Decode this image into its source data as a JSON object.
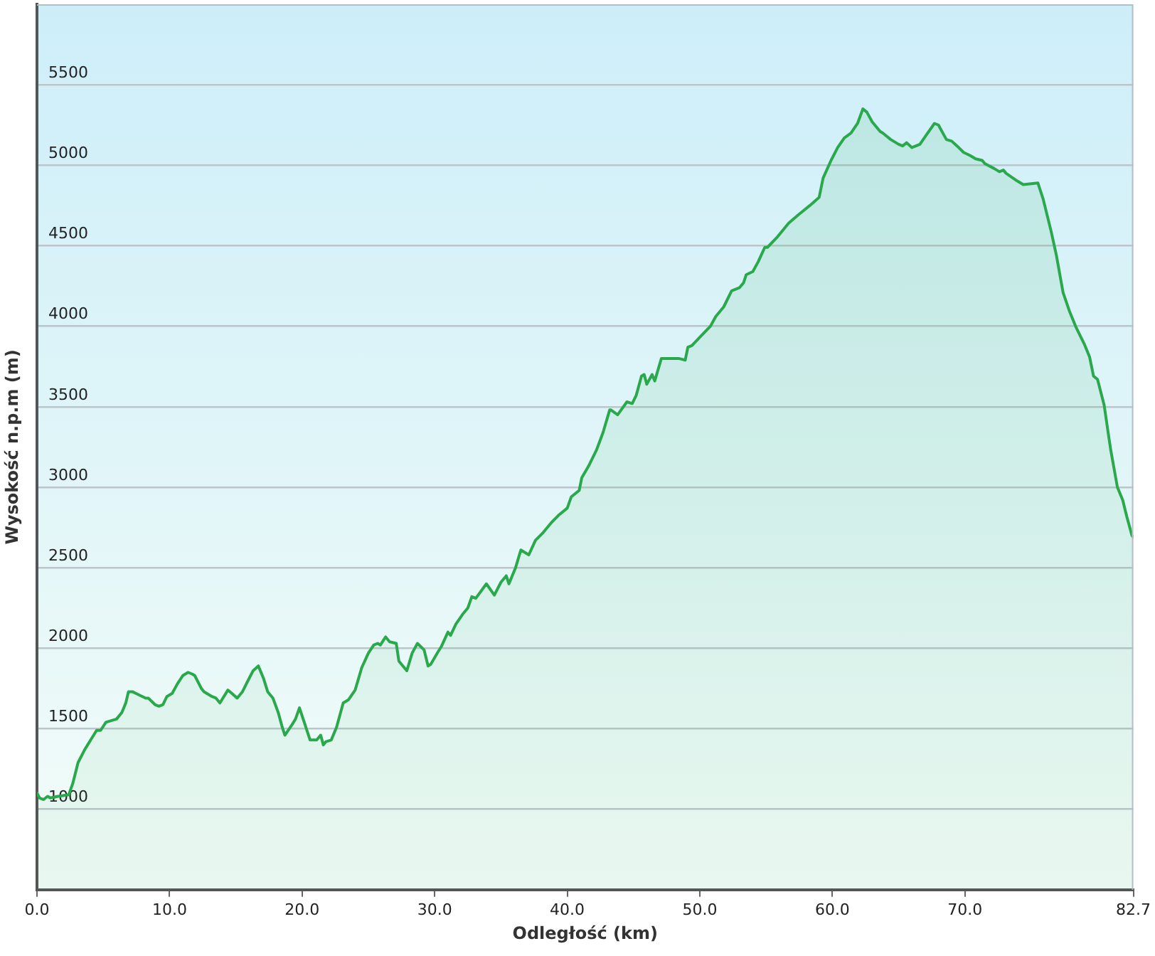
{
  "chart_data": {
    "type": "area",
    "xlabel": "Odległość (km)",
    "ylabel": "Wysokość n.p.m (m)",
    "x": [
      0,
      0.2,
      0.5,
      0.8,
      1.0,
      1.6,
      2.4,
      2.7,
      3.1,
      3.6,
      4.2,
      4.5,
      4.8,
      5.2,
      5.6,
      6.0,
      6.4,
      6.7,
      6.9,
      7.2,
      7.7,
      8.2,
      8.4,
      8.9,
      9.2,
      9.5,
      9.8,
      10.2,
      10.6,
      11.0,
      11.4,
      11.7,
      11.9,
      12.4,
      12.6,
      13.2,
      13.5,
      13.8,
      14.4,
      14.7,
      15.1,
      15.5,
      15.8,
      16.3,
      16.7,
      17.1,
      17.4,
      17.8,
      18.2,
      18.5,
      18.7,
      19.2,
      19.5,
      19.8,
      20.2,
      20.6,
      21.1,
      21.4,
      21.6,
      21.8,
      22.2,
      22.6,
      23.1,
      23.5,
      24.0,
      24.5,
      25.0,
      25.4,
      25.7,
      25.9,
      26.3,
      26.6,
      27.1,
      27.3,
      27.9,
      28.3,
      28.7,
      29.2,
      29.5,
      29.7,
      30.2,
      30.5,
      31.0,
      31.2,
      31.6,
      32.1,
      32.5,
      32.8,
      33.1,
      33.9,
      34.5,
      35.0,
      35.4,
      35.6,
      36.1,
      36.5,
      37.1,
      37.6,
      38.2,
      38.8,
      39.4,
      40.0,
      40.3,
      40.9,
      41.1,
      41.6,
      42.2,
      42.7,
      43.2,
      43.3,
      43.8,
      44.5,
      44.9,
      45.2,
      45.6,
      45.8,
      46.0,
      46.2,
      46.4,
      46.6,
      47.1,
      47.4,
      48.4,
      48.9,
      49.1,
      49.4,
      50.1,
      50.8,
      51.2,
      51.8,
      52.4,
      53.0,
      53.3,
      53.5,
      54.0,
      54.4,
      54.9,
      55.1,
      55.8,
      56.7,
      57.4,
      58.3,
      59.0,
      59.3,
      59.9,
      60.4,
      60.9,
      61.4,
      61.9,
      62.3,
      62.6,
      63.0,
      63.6,
      63.8,
      64.4,
      65.0,
      65.3,
      65.6,
      66.0,
      66.6,
      67.1,
      67.7,
      68.0,
      68.6,
      69.0,
      69.4,
      69.9,
      70.4,
      70.8,
      71.3,
      71.5,
      72.2,
      72.6,
      72.9,
      73.1,
      73.8,
      74.4,
      75.5,
      75.9,
      76.5,
      76.9,
      77.4,
      77.9,
      78.4,
      79.0,
      79.4,
      79.7,
      80.0,
      80.5,
      80.8,
      81.0,
      81.5,
      81.9,
      82.2,
      82.6,
      82.7
    ],
    "series": [
      {
        "color": "#2aa84c",
        "values": [
          1100,
          1070,
          1060,
          1080,
          1070,
          1080,
          1090,
          1160,
          1290,
          1370,
          1450,
          1490,
          1490,
          1540,
          1550,
          1560,
          1600,
          1660,
          1730,
          1730,
          1710,
          1690,
          1690,
          1650,
          1640,
          1650,
          1700,
          1720,
          1780,
          1830,
          1850,
          1840,
          1830,
          1750,
          1730,
          1700,
          1690,
          1660,
          1740,
          1720,
          1690,
          1730,
          1780,
          1860,
          1890,
          1810,
          1730,
          1690,
          1600,
          1510,
          1460,
          1520,
          1560,
          1630,
          1530,
          1430,
          1430,
          1460,
          1400,
          1420,
          1430,
          1510,
          1660,
          1680,
          1740,
          1880,
          1970,
          2020,
          2030,
          2020,
          2070,
          2040,
          2030,
          1920,
          1860,
          1970,
          2030,
          1990,
          1890,
          1900,
          1970,
          2010,
          2100,
          2080,
          2150,
          2210,
          2250,
          2320,
          2310,
          2400,
          2330,
          2410,
          2450,
          2400,
          2500,
          2610,
          2580,
          2670,
          2720,
          2780,
          2830,
          2870,
          2940,
          2980,
          3060,
          3130,
          3230,
          3340,
          3480,
          3480,
          3450,
          3530,
          3520,
          3570,
          3690,
          3700,
          3640,
          3670,
          3700,
          3660,
          3800,
          3800,
          3800,
          3790,
          3870,
          3880,
          3940,
          4000,
          4060,
          4120,
          4220,
          4240,
          4270,
          4320,
          4340,
          4400,
          4490,
          4490,
          4550,
          4640,
          4690,
          4750,
          4800,
          4920,
          5030,
          5110,
          5170,
          5200,
          5260,
          5350,
          5330,
          5270,
          5210,
          5200,
          5160,
          5130,
          5120,
          5140,
          5110,
          5130,
          5190,
          5260,
          5250,
          5160,
          5150,
          5120,
          5080,
          5060,
          5040,
          5030,
          5010,
          4980,
          4960,
          4970,
          4950,
          4910,
          4880,
          4890,
          4790,
          4590,
          4440,
          4210,
          4090,
          3990,
          3890,
          3810,
          3690,
          3670,
          3510,
          3340,
          3230,
          3000,
          2920,
          2820,
          2700,
          2690
        ]
      }
    ],
    "xlim": [
      0,
      82.7
    ],
    "ylim": [
      500,
      6000
    ],
    "xticks": [
      {
        "value": 0,
        "label": "0.0"
      },
      {
        "value": 10,
        "label": "10.0"
      },
      {
        "value": 20,
        "label": "20.0"
      },
      {
        "value": 30,
        "label": "30.0"
      },
      {
        "value": 40,
        "label": "40.0"
      },
      {
        "value": 50,
        "label": "50.0"
      },
      {
        "value": 60,
        "label": "60.0"
      },
      {
        "value": 70,
        "label": "70.0"
      },
      {
        "value": 82.7,
        "label": "82.7"
      }
    ],
    "yticks": [
      1000,
      1500,
      2000,
      2500,
      3000,
      3500,
      4000,
      4500,
      5000,
      5500
    ],
    "grid": "y"
  }
}
